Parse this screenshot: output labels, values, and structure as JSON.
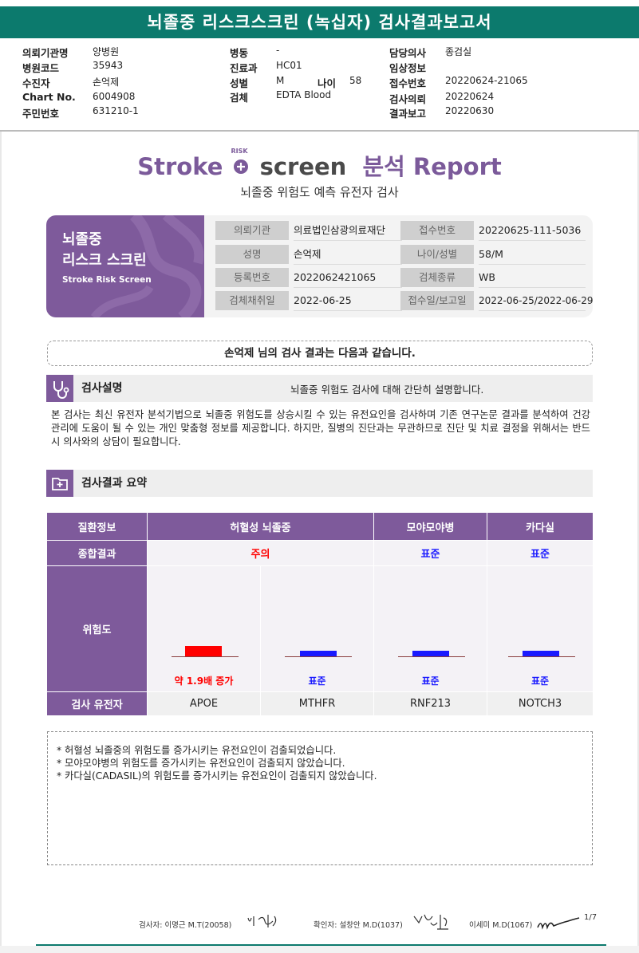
{
  "title": "뇌졸중 리스크스크린 (녹십자) 검사결과보고서",
  "header": {
    "col1": [
      {
        "label": "의뢰기관명",
        "value": "양병원"
      },
      {
        "label": "병원코드",
        "value": "35943"
      },
      {
        "label": "수진자",
        "value": "손억제"
      },
      {
        "label": "Chart No.",
        "value": "6004908"
      },
      {
        "label": "주민번호",
        "value": "631210-1"
      }
    ],
    "col2": [
      {
        "label": "병동",
        "value": "-"
      },
      {
        "label": "진료과",
        "value": "HC01"
      },
      {
        "label": "성별",
        "value": "M"
      },
      {
        "label": "검체",
        "value": "EDTA Blood"
      }
    ],
    "age_label": "나이",
    "age_value": "58",
    "col3": [
      {
        "label": "담당의사",
        "value": "종검실"
      },
      {
        "label": "임상정보",
        "value": ""
      },
      {
        "label": "접수번호",
        "value": "20220624-21065"
      },
      {
        "label": "검사의뢰",
        "value": "20220624"
      },
      {
        "label": "결과보고",
        "value": "20220630"
      }
    ]
  },
  "logo": {
    "part1": "Stroke",
    "risk": "RISK",
    "part2": "screen",
    "part3": "분석 Report"
  },
  "subtitle": "뇌졸중 위험도 예측 유전자 검사",
  "card": {
    "title_line1": "뇌졸중",
    "title_line2": "리스크 스크린",
    "english": "Stroke Risk Screen",
    "rows": [
      {
        "l1": "의뢰기관",
        "v1": "의료법인삼광의료재단",
        "l2": "접수번호",
        "v2": "20220625-111-5036"
      },
      {
        "l1": "성명",
        "v1": "손억제",
        "l2": "나이/성별",
        "v2": "58/M"
      },
      {
        "l1": "등록번호",
        "v1": "2022062421065",
        "l2": "검체종류",
        "v2": "WB"
      },
      {
        "l1": "검체채취일",
        "v1": "2022-06-25",
        "l2": "접수일/보고일",
        "v2": "2022-06-25/2022-06-29"
      }
    ]
  },
  "result_intro": "손억제 님의 검사 결과는 다음과 같습니다.",
  "section1": {
    "title": "검사설명",
    "desc": "뇌졸중 위험도 검사에 대해 간단히 설명합니다.",
    "paragraph": "본 검사는 최신 유전자 분석기법으로 뇌졸중 위험도를 상승시킬 수 있는 유전요인을 검사하며 기존 연구논문 결과를 분석하여 건강 관리에 도움이 될 수 있는 개인 맞춤형 정보를 제공합니다. 하지만, 질병의 진단과는 무관하므로 진단 및 치료 결정을 위해서는 반드시 의사와의 상담이 필요합니다."
  },
  "section2": {
    "title": "검사결과 요약"
  },
  "table": {
    "row_labels": {
      "disease": "질환정보",
      "summary": "종합결과",
      "risk": "위험도",
      "gene": "검사 유전자"
    },
    "diseases": [
      "허혈성 뇌졸중",
      "모야모야병",
      "카다실"
    ],
    "summaries": [
      {
        "text": "주의",
        "color": "#ff0000"
      },
      {
        "text": "표준",
        "color": "#1a1aff"
      },
      {
        "text": "표준",
        "color": "#1a1aff"
      }
    ],
    "risks": [
      {
        "label": "약 1.9배 증가",
        "color": "#ff0000",
        "level": "high"
      },
      {
        "label": "표준",
        "color": "#1a1aff",
        "level": "standard"
      },
      {
        "label": "표준",
        "color": "#1a1aff",
        "level": "standard"
      },
      {
        "label": "표준",
        "color": "#1a1aff",
        "level": "standard"
      }
    ],
    "genes": [
      "APOE",
      "MTHFR",
      "RNF213",
      "NOTCH3"
    ]
  },
  "notes": [
    "* 허혈성 뇌졸중의 위험도를 증가시키는 유전요인이 검출되었습니다.",
    "* 모야모야병의 위험도를 증가시키는 유전요인이 검출되지 않았습니다.",
    "* 카다실(CADASIL)의 위험도를 증가시키는 유전요인이 검출되지 않았습니다."
  ],
  "footer": {
    "examiner": "검사자: 이명근 M.T(20058)",
    "confirmer": "확인자: 설창안 M.D(1037)",
    "doctor2": "이세미 M.D(1067)",
    "page": "1/7"
  },
  "colors": {
    "teal": "#0c7a6d",
    "purple": "#7e5a9b",
    "red": "#ff0000",
    "blue": "#1a1aff"
  }
}
